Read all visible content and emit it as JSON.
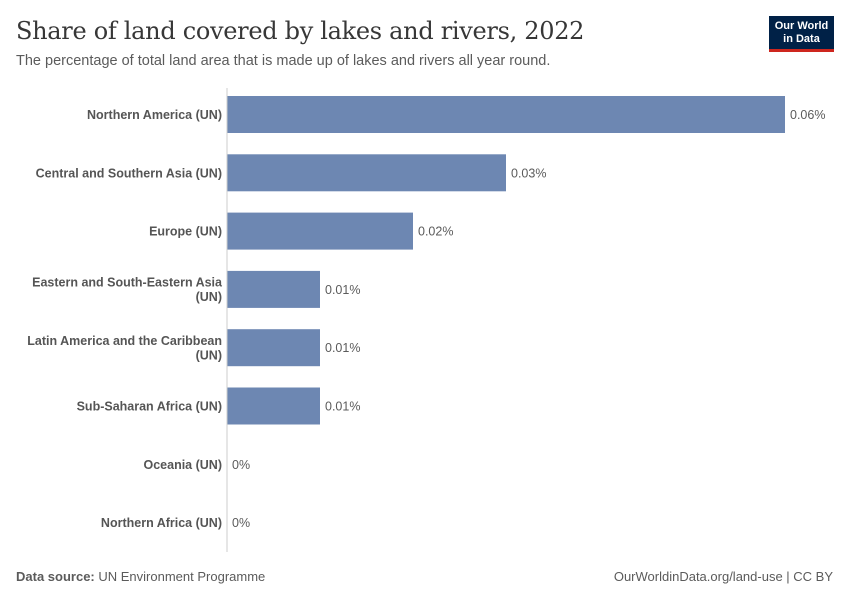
{
  "header": {
    "title": "Share of land covered by lakes and rivers, 2022",
    "subtitle": "The percentage of total land area that is made up of lakes and rivers all year round."
  },
  "logo": {
    "line1": "Our World",
    "line2": "in Data"
  },
  "footer": {
    "source_label": "Data source:",
    "source_value": "UN Environment Programme",
    "link": "OurWorldinData.org/land-use | CC BY"
  },
  "colors": {
    "bar": "#6d87b2",
    "axis": "#cccccc",
    "label": "#555555",
    "value": "#5b5b5b"
  },
  "chart_data": {
    "type": "bar",
    "orientation": "horizontal",
    "title": "Share of land covered by lakes and rivers, 2022",
    "subtitle": "The percentage of total land area that is made up of lakes and rivers all year round.",
    "categories": [
      [
        "Northern America (UN)"
      ],
      [
        "Central and Southern Asia (UN)"
      ],
      [
        "Europe (UN)"
      ],
      [
        "Eastern and South-Eastern Asia",
        "(UN)"
      ],
      [
        "Latin America and the Caribbean",
        "(UN)"
      ],
      [
        "Sub-Saharan Africa (UN)"
      ],
      [
        "Oceania (UN)"
      ],
      [
        "Northern Africa (UN)"
      ]
    ],
    "values": [
      0.06,
      0.03,
      0.02,
      0.01,
      0.01,
      0.01,
      0,
      0
    ],
    "value_labels": [
      "0.06%",
      "0.03%",
      "0.02%",
      "0.01%",
      "0.01%",
      "0.01%",
      "0%",
      "0%"
    ],
    "xlim": [
      0,
      0.06
    ],
    "unit": "%",
    "grid": false,
    "legend": "none"
  }
}
